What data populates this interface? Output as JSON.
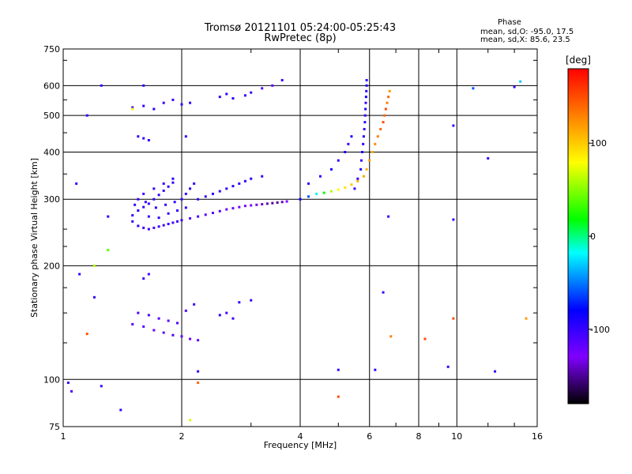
{
  "header": {
    "title_line1": "Tromsø 20121101 05:24:00-05:25:43",
    "title_line2": "RwPretec (8p)",
    "phase_title": "Phase",
    "phase_o": "mean, sd,O: -95.0, 17.5",
    "phase_x": "mean, sd,X:  85.6, 23.5"
  },
  "colorbar": {
    "label": "[deg]",
    "min": -180,
    "max": 180,
    "ticks": [
      {
        "value": 100,
        "label": "100"
      },
      {
        "value": 0,
        "label": "0"
      },
      {
        "value": -100,
        "label": "-100"
      }
    ]
  },
  "chart_data": {
    "type": "scatter",
    "title": "Tromsø 20121101 05:24:00-05:25:43",
    "subtitle": "RwPretec (8p)",
    "xlabel": "Frequency [MHz]",
    "ylabel": "Stationary phase Virtual Height [km]",
    "x_scale": "log",
    "y_scale": "log",
    "xlim": [
      1,
      16
    ],
    "ylim": [
      75,
      750
    ],
    "x_ticks": [
      {
        "v": 1,
        "label": "1"
      },
      {
        "v": 2,
        "label": "2"
      },
      {
        "v": 4,
        "label": "4"
      },
      {
        "v": 6,
        "label": "6"
      },
      {
        "v": 8,
        "label": "8"
      },
      {
        "v": 10,
        "label": "10"
      },
      {
        "v": 16,
        "label": "16"
      }
    ],
    "x_grid": [
      2,
      4,
      6,
      8,
      10
    ],
    "y_ticks": [
      {
        "v": 75,
        "label": "75"
      },
      {
        "v": 100,
        "label": "100"
      },
      {
        "v": 200,
        "label": "200"
      },
      {
        "v": 300,
        "label": "300"
      },
      {
        "v": 400,
        "label": "400"
      },
      {
        "v": 500,
        "label": "500"
      },
      {
        "v": 600,
        "label": "600"
      },
      {
        "v": 750,
        "label": "750"
      }
    ],
    "y_grid": [
      100,
      200,
      300,
      400,
      500,
      600
    ],
    "color_by": "phase [deg]",
    "points": [
      [
        1.5,
        262,
        -100
      ],
      [
        1.55,
        255,
        -100
      ],
      [
        1.6,
        252,
        -105
      ],
      [
        1.65,
        250,
        -100
      ],
      [
        1.7,
        252,
        -110
      ],
      [
        1.75,
        254,
        -100
      ],
      [
        1.8,
        256,
        -105
      ],
      [
        1.85,
        258,
        -100
      ],
      [
        1.9,
        260,
        -110
      ],
      [
        1.95,
        262,
        -100
      ],
      [
        2.0,
        264,
        -105
      ],
      [
        2.1,
        267,
        -110
      ],
      [
        2.2,
        270,
        -110
      ],
      [
        2.3,
        273,
        -115
      ],
      [
        2.4,
        276,
        -115
      ],
      [
        2.5,
        279,
        -115
      ],
      [
        2.6,
        282,
        -120
      ],
      [
        2.7,
        284,
        -120
      ],
      [
        2.8,
        286,
        -125
      ],
      [
        2.9,
        288,
        -125
      ],
      [
        3.0,
        289,
        -130
      ],
      [
        3.1,
        290,
        -135
      ],
      [
        3.2,
        291,
        -140
      ],
      [
        3.3,
        292,
        -145
      ],
      [
        3.4,
        293,
        -150
      ],
      [
        3.5,
        294,
        -150
      ],
      [
        3.6,
        295,
        -140
      ],
      [
        3.7,
        296,
        -130
      ],
      [
        1.5,
        272,
        -100
      ],
      [
        1.55,
        280,
        -95
      ],
      [
        1.6,
        286,
        -100
      ],
      [
        1.65,
        292,
        -100
      ],
      [
        1.7,
        300,
        -95
      ],
      [
        1.75,
        308,
        -100
      ],
      [
        1.8,
        316,
        -100
      ],
      [
        1.85,
        324,
        -95
      ],
      [
        1.9,
        332,
        -100
      ],
      [
        1.55,
        300,
        -100
      ],
      [
        1.6,
        310,
        -105
      ],
      [
        1.7,
        320,
        -100
      ],
      [
        1.8,
        330,
        -100
      ],
      [
        1.9,
        340,
        -95
      ],
      [
        2.0,
        300,
        -100
      ],
      [
        2.05,
        310,
        -100
      ],
      [
        2.1,
        320,
        -95
      ],
      [
        2.15,
        330,
        -100
      ],
      [
        2.2,
        300,
        -100
      ],
      [
        2.3,
        305,
        -100
      ],
      [
        2.4,
        310,
        -95
      ],
      [
        2.5,
        315,
        -100
      ],
      [
        2.6,
        320,
        -100
      ],
      [
        2.7,
        325,
        -95
      ],
      [
        2.8,
        330,
        -100
      ],
      [
        2.9,
        335,
        -100
      ],
      [
        3.0,
        340,
        -95
      ],
      [
        3.2,
        345,
        -100
      ],
      [
        1.65,
        270,
        -100
      ],
      [
        1.75,
        268,
        -95
      ],
      [
        1.85,
        275,
        -100
      ],
      [
        1.95,
        280,
        -100
      ],
      [
        2.05,
        285,
        -95
      ],
      [
        1.52,
        290,
        -100
      ],
      [
        1.62,
        295,
        -100
      ],
      [
        1.72,
        285,
        -95
      ],
      [
        1.82,
        290,
        -100
      ],
      [
        1.92,
        295,
        -100
      ],
      [
        4.0,
        300,
        -80
      ],
      [
        4.2,
        305,
        -60
      ],
      [
        4.4,
        310,
        -20
      ],
      [
        4.6,
        312,
        20
      ],
      [
        4.8,
        315,
        60
      ],
      [
        5.0,
        318,
        80
      ],
      [
        5.2,
        322,
        90
      ],
      [
        5.4,
        328,
        100
      ],
      [
        5.6,
        335,
        110
      ],
      [
        5.8,
        345,
        115
      ],
      [
        5.9,
        360,
        110
      ],
      [
        6.0,
        380,
        120
      ],
      [
        6.1,
        400,
        110
      ],
      [
        6.2,
        420,
        125
      ],
      [
        6.3,
        440,
        130
      ],
      [
        6.4,
        460,
        140
      ],
      [
        6.5,
        480,
        150
      ],
      [
        6.55,
        500,
        140
      ],
      [
        6.6,
        520,
        150
      ],
      [
        6.65,
        540,
        130
      ],
      [
        6.7,
        560,
        140
      ],
      [
        6.75,
        580,
        120
      ],
      [
        5.5,
        320,
        -100
      ],
      [
        5.6,
        340,
        -100
      ],
      [
        5.7,
        360,
        -90
      ],
      [
        5.72,
        380,
        -100
      ],
      [
        5.75,
        400,
        -90
      ],
      [
        5.78,
        420,
        -100
      ],
      [
        5.8,
        440,
        -90
      ],
      [
        5.82,
        460,
        -100
      ],
      [
        5.84,
        480,
        -90
      ],
      [
        5.85,
        500,
        -100
      ],
      [
        5.86,
        520,
        -90
      ],
      [
        5.87,
        540,
        -100
      ],
      [
        5.88,
        560,
        -90
      ],
      [
        5.89,
        580,
        -100
      ],
      [
        5.9,
        600,
        -90
      ],
      [
        5.9,
        620,
        -100
      ],
      [
        4.2,
        330,
        -100
      ],
      [
        4.5,
        345,
        -100
      ],
      [
        4.8,
        360,
        -90
      ],
      [
        5.0,
        380,
        -100
      ],
      [
        5.2,
        400,
        -90
      ],
      [
        5.3,
        420,
        -100
      ],
      [
        5.4,
        440,
        -90
      ],
      [
        1.5,
        525,
        -100
      ],
      [
        1.6,
        530,
        -100
      ],
      [
        1.7,
        520,
        -95
      ],
      [
        1.8,
        540,
        -100
      ],
      [
        1.9,
        550,
        -100
      ],
      [
        2.0,
        535,
        -95
      ],
      [
        2.1,
        540,
        -100
      ],
      [
        2.5,
        560,
        -100
      ],
      [
        2.6,
        570,
        -100
      ],
      [
        2.7,
        555,
        -95
      ],
      [
        2.9,
        565,
        -100
      ],
      [
        3.0,
        575,
        -100
      ],
      [
        3.2,
        590,
        -110
      ],
      [
        3.4,
        600,
        -120
      ],
      [
        3.6,
        620,
        -100
      ],
      [
        1.55,
        440,
        -100
      ],
      [
        1.6,
        435,
        -100
      ],
      [
        1.65,
        430,
        -95
      ],
      [
        2.05,
        440,
        -100
      ],
      [
        1.5,
        140,
        -110
      ],
      [
        1.6,
        138,
        -115
      ],
      [
        1.7,
        135,
        -120
      ],
      [
        1.8,
        133,
        -115
      ],
      [
        1.9,
        131,
        -110
      ],
      [
        2.0,
        130,
        -115
      ],
      [
        2.1,
        128,
        -120
      ],
      [
        2.2,
        127,
        -115
      ],
      [
        1.55,
        150,
        -110
      ],
      [
        1.65,
        148,
        -105
      ],
      [
        1.75,
        145,
        -110
      ],
      [
        1.85,
        143,
        -115
      ],
      [
        1.95,
        141,
        -110
      ],
      [
        2.05,
        152,
        -110
      ],
      [
        2.15,
        158,
        -105
      ],
      [
        1.6,
        185,
        -100
      ],
      [
        1.65,
        190,
        -105
      ],
      [
        2.5,
        148,
        -100
      ],
      [
        2.6,
        150,
        -105
      ],
      [
        2.7,
        145,
        -100
      ],
      [
        2.8,
        160,
        -100
      ],
      [
        3.0,
        162,
        -100
      ],
      [
        1.03,
        98,
        -100
      ],
      [
        1.05,
        93,
        -110
      ],
      [
        1.25,
        96,
        -100
      ],
      [
        1.4,
        83,
        -100
      ],
      [
        1.1,
        190,
        -100
      ],
      [
        1.2,
        165,
        -100
      ],
      [
        1.3,
        270,
        -100
      ],
      [
        1.08,
        330,
        -100
      ],
      [
        1.15,
        500,
        -100
      ],
      [
        1.25,
        600,
        -100
      ],
      [
        1.6,
        600,
        -100
      ],
      [
        2.2,
        105,
        -100
      ],
      [
        5.0,
        106,
        -100
      ],
      [
        6.2,
        106,
        -100
      ],
      [
        9.5,
        108,
        -100
      ],
      [
        12.5,
        105,
        -100
      ],
      [
        12.0,
        385,
        -100
      ],
      [
        14.0,
        595,
        -100
      ],
      [
        9.8,
        470,
        -100
      ],
      [
        6.5,
        170,
        -100
      ],
      [
        6.7,
        270,
        -100
      ],
      [
        9.8,
        265,
        -100
      ],
      [
        2.1,
        78,
        70
      ],
      [
        2.2,
        98,
        140
      ],
      [
        5.0,
        90,
        150
      ],
      [
        1.15,
        132,
        150
      ],
      [
        8.3,
        128,
        150
      ],
      [
        9.8,
        145,
        150
      ],
      [
        11.0,
        590,
        -60
      ],
      [
        15.0,
        145,
        120
      ],
      [
        14.5,
        615,
        -30
      ],
      [
        6.8,
        130,
        130
      ],
      [
        1.3,
        220,
        40
      ],
      [
        1.2,
        200,
        60
      ],
      [
        1.5,
        520,
        80
      ]
    ]
  },
  "colors": {
    "scale": [
      "#000000",
      "#8000ff",
      "#0000ff",
      "#00ffff",
      "#00ff00",
      "#ffff00",
      "#ff8000",
      "#ff0000"
    ]
  }
}
